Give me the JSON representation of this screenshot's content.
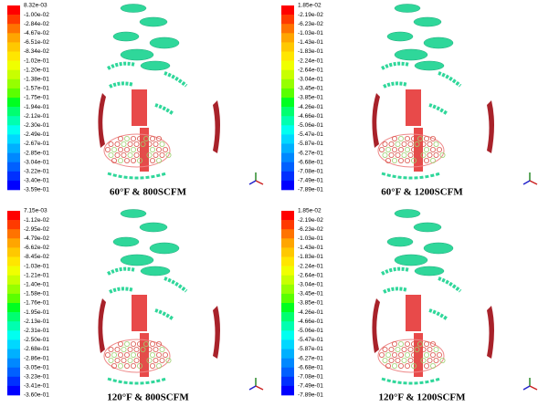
{
  "panels": [
    {
      "caption": "60°F & 800SCFM",
      "colorbar_labels": [
        "8.32e-03",
        "-1.00e-02",
        "-2.84e-02",
        "-4.67e-02",
        "-6.51e-02",
        "-8.34e-02",
        "-1.02e-01",
        "-1.20e-01",
        "-1.38e-01",
        "-1.57e-01",
        "-1.75e-01",
        "-1.94e-01",
        "-2.12e-01",
        "-2.30e-01",
        "-2.49e-01",
        "-2.67e-01",
        "-2.85e-01",
        "-3.04e-01",
        "-3.22e-01",
        "-3.40e-01",
        "-3.59e-01"
      ]
    },
    {
      "caption": "60°F & 1200SCFM",
      "colorbar_labels": [
        "1.85e-02",
        "-2.19e-02",
        "-6.23e-02",
        "-1.03e-01",
        "-1.43e-01",
        "-1.83e-01",
        "-2.24e-01",
        "-2.64e-01",
        "-3.04e-01",
        "-3.45e-01",
        "-3.85e-01",
        "-4.26e-01",
        "-4.66e-01",
        "-5.06e-01",
        "-5.47e-01",
        "-5.87e-01",
        "-6.27e-01",
        "-6.68e-01",
        "-7.08e-01",
        "-7.49e-01",
        "-7.89e-01"
      ]
    },
    {
      "caption": "120°F & 800SCFM",
      "colorbar_labels": [
        "7.15e-03",
        "-1.12e-02",
        "-2.95e-02",
        "-4.79e-02",
        "-6.62e-02",
        "-8.45e-02",
        "-1.03e-01",
        "-1.21e-01",
        "-1.40e-01",
        "-1.58e-01",
        "-1.76e-01",
        "-1.95e-01",
        "-2.13e-01",
        "-2.31e-01",
        "-2.50e-01",
        "-2.68e-01",
        "-2.86e-01",
        "-3.05e-01",
        "-3.23e-01",
        "-3.41e-01",
        "-3.60e-01"
      ]
    },
    {
      "caption": "120°F & 1200SCFM",
      "colorbar_labels": [
        "1.85e-02",
        "-2.19e-02",
        "-6.23e-02",
        "-1.03e-01",
        "-1.43e-01",
        "-1.83e-01",
        "-2.24e-01",
        "-2.64e-01",
        "-3.04e-01",
        "-3.45e-01",
        "-3.85e-01",
        "-4.26e-01",
        "-4.66e-01",
        "-5.06e-01",
        "-5.47e-01",
        "-5.87e-01",
        "-6.27e-01",
        "-6.68e-01",
        "-7.08e-01",
        "-7.49e-01",
        "-7.89e-01"
      ]
    }
  ]
}
